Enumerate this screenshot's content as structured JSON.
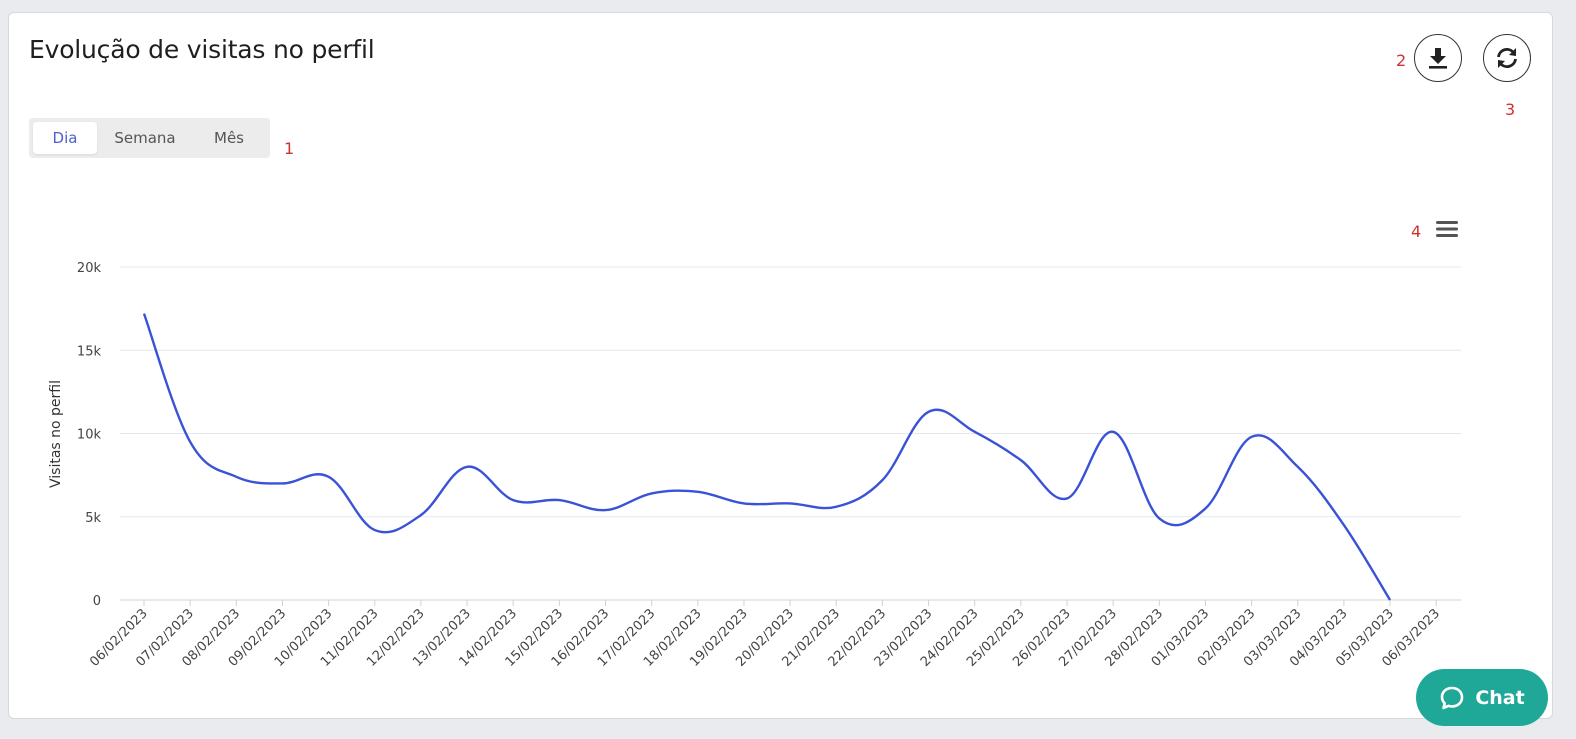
{
  "header": {
    "title": "Evolução de visitas no perfil"
  },
  "tabs": {
    "items": [
      "Dia",
      "Semana",
      "Mês"
    ],
    "active_index": 0
  },
  "markers": {
    "m1": "1",
    "m2": "2",
    "m3": "3",
    "m4": "4"
  },
  "actions": {
    "download_icon": "download-icon",
    "refresh_icon": "refresh-icon",
    "menu_icon": "hamburger-menu-icon"
  },
  "chat": {
    "label": "Chat",
    "icon": "chat-bubble-icon"
  },
  "colors": {
    "line": "#3a52d6",
    "accent": "#4e5fc9",
    "chat": "#1fa898",
    "marker": "#d23131"
  },
  "chart_data": {
    "type": "line",
    "ylabel": "Visitas no perfil",
    "xlabel": "",
    "ylim": [
      0,
      20000
    ],
    "yticks": [
      0,
      5000,
      10000,
      15000,
      20000
    ],
    "ytick_labels": [
      "0",
      "5k",
      "10k",
      "15k",
      "20k"
    ],
    "grid": true,
    "categories": [
      "06/02/2023",
      "07/02/2023",
      "08/02/2023",
      "09/02/2023",
      "10/02/2023",
      "11/02/2023",
      "12/02/2023",
      "13/02/2023",
      "14/02/2023",
      "15/02/2023",
      "16/02/2023",
      "17/02/2023",
      "18/02/2023",
      "19/02/2023",
      "20/02/2023",
      "21/02/2023",
      "22/02/2023",
      "23/02/2023",
      "24/02/2023",
      "25/02/2023",
      "26/02/2023",
      "27/02/2023",
      "28/02/2023",
      "01/03/2023",
      "02/03/2023",
      "03/03/2023",
      "04/03/2023",
      "05/03/2023",
      "06/03/2023"
    ],
    "series": [
      {
        "values": [
          17200,
          9500,
          7400,
          7000,
          7400,
          4200,
          5100,
          8000,
          6000,
          6000,
          5400,
          6400,
          6500,
          5800,
          5800,
          5600,
          7200,
          11300,
          10100,
          8400,
          6100,
          10100,
          4900,
          5500,
          9800,
          8000,
          4500,
          0,
          null
        ]
      }
    ]
  }
}
